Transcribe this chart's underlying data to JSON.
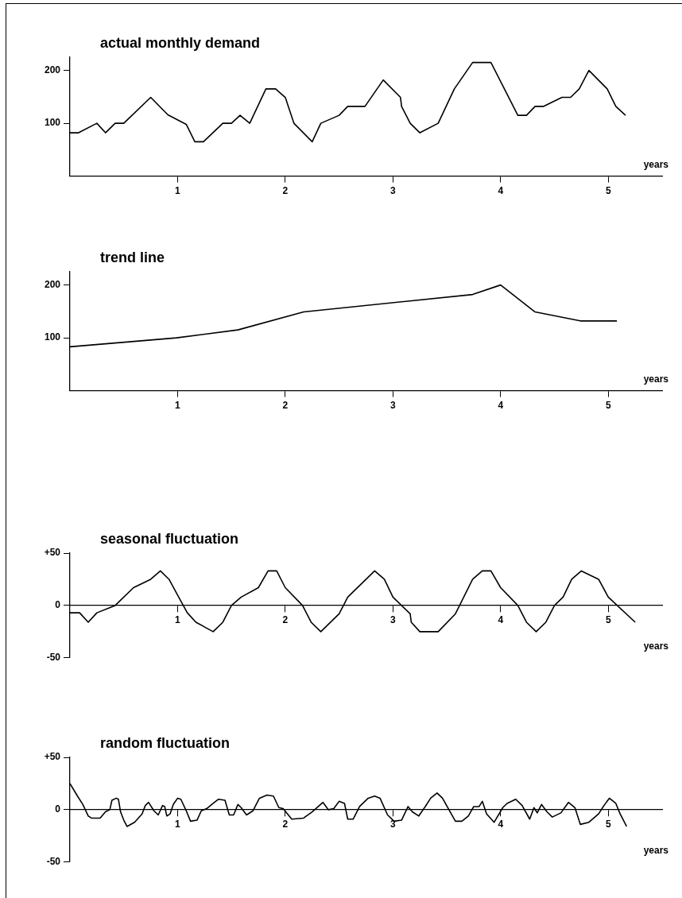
{
  "chart_data": [
    {
      "type": "line",
      "title": "actual monthly demand",
      "xlabel": "years",
      "color": "#000000",
      "xlim": [
        0,
        5.5
      ],
      "xticks": [
        1,
        2,
        3,
        4,
        5
      ],
      "ylim": [
        0,
        225
      ],
      "yticks": [
        100,
        200
      ],
      "x": [
        0,
        0.08,
        0.25,
        0.33,
        0.42,
        0.5,
        0.75,
        0.91,
        1.08,
        1.16,
        1.24,
        1.42,
        1.5,
        1.58,
        1.67,
        1.82,
        1.91,
        2,
        2.08,
        2.25,
        2.33,
        2.5,
        2.58,
        2.74,
        2.91,
        3.07,
        3.08,
        3.16,
        3.25,
        3.42,
        3.57,
        3.74,
        3.91,
        4.16,
        4.24,
        4.32,
        4.4,
        4.57,
        4.65,
        4.73,
        4.82,
        4.99,
        5.07,
        5.16
      ],
      "values": [
        82,
        82,
        100,
        82,
        100,
        100,
        149,
        116,
        98,
        65,
        65,
        100,
        100,
        115,
        100,
        165,
        165,
        149,
        100,
        65,
        100,
        115,
        132,
        132,
        182,
        149,
        132,
        100,
        82,
        100,
        165,
        215,
        215,
        115,
        115,
        132,
        132,
        149,
        149,
        165,
        200,
        165,
        132,
        115
      ]
    },
    {
      "type": "line",
      "title": "trend line",
      "xlabel": "years",
      "color": "#000000",
      "xlim": [
        0,
        5.5
      ],
      "xticks": [
        1,
        2,
        3,
        4,
        5
      ],
      "ylim": [
        0,
        225
      ],
      "yticks": [
        100,
        200
      ],
      "x": [
        0,
        0.99,
        1.56,
        2.17,
        3.74,
        4,
        4.32,
        4.74,
        5.08
      ],
      "values": [
        83,
        100,
        115,
        149,
        182,
        200,
        149,
        132,
        132
      ]
    },
    {
      "type": "line",
      "title": "seasonal fluctuation",
      "xlabel": "years",
      "color": "#000000",
      "xlim": [
        0,
        5.5
      ],
      "xticks": [
        1,
        2,
        3,
        4,
        5
      ],
      "ylim": [
        -50,
        50
      ],
      "yticks": [
        {
          "value": 50,
          "label": "+50"
        },
        0,
        -50
      ],
      "x": [
        0,
        0.09,
        0.17,
        0.25,
        0.42,
        0.59,
        0.75,
        0.84,
        0.92,
        1.01,
        1.09,
        1.17,
        1.33,
        1.42,
        1.5,
        1.59,
        1.75,
        1.84,
        1.92,
        2,
        2.16,
        2.24,
        2.33,
        2.5,
        2.58,
        2.83,
        2.92,
        3,
        3.16,
        3.17,
        3.25,
        3.42,
        3.58,
        3.74,
        3.83,
        3.91,
        4,
        4.16,
        4.24,
        4.33,
        4.42,
        4.5,
        4.58,
        4.66,
        4.75,
        4.91,
        5,
        5.25
      ],
      "values": [
        -7,
        -7,
        -16,
        -7,
        0,
        17,
        25,
        33,
        25,
        8,
        -7,
        -16,
        -25,
        -16,
        0,
        8,
        17,
        33,
        33,
        17,
        0,
        -16,
        -25,
        -8,
        8,
        33,
        25,
        8,
        -8,
        -16,
        -25,
        -25,
        -8,
        25,
        33,
        33,
        17,
        0,
        -16,
        -25,
        -16,
        0,
        8,
        25,
        33,
        25,
        8,
        -16
      ]
    },
    {
      "type": "line",
      "title": "random fluctuation",
      "xlabel": "years",
      "color": "#000000",
      "xlim": [
        0,
        5.5
      ],
      "xticks": [
        1,
        2,
        3,
        4,
        5
      ],
      "ylim": [
        -50,
        50
      ],
      "yticks": [
        {
          "value": 50,
          "label": "+50"
        },
        0,
        -50
      ],
      "x": [
        0,
        0.07,
        0.12,
        0.17,
        0.2,
        0.28,
        0.33,
        0.37,
        0.39,
        0.43,
        0.45,
        0.47,
        0.5,
        0.53,
        0.6,
        0.67,
        0.7,
        0.73,
        0.78,
        0.82,
        0.86,
        0.88,
        0.9,
        0.93,
        0.96,
        1,
        1.03,
        1.08,
        1.12,
        1.18,
        1.22,
        1.27,
        1.33,
        1.38,
        1.44,
        1.48,
        1.52,
        1.56,
        1.59,
        1.64,
        1.7,
        1.76,
        1.83,
        1.89,
        1.94,
        1.98,
        2.06,
        2.17,
        2.25,
        2.35,
        2.4,
        2.45,
        2.5,
        2.55,
        2.58,
        2.63,
        2.69,
        2.77,
        2.83,
        2.88,
        2.95,
        3.01,
        3.08,
        3.14,
        3.18,
        3.24,
        3.3,
        3.35,
        3.41,
        3.46,
        3.58,
        3.64,
        3.7,
        3.75,
        3.8,
        3.83,
        3.87,
        3.94,
        4.02,
        4.06,
        4.14,
        4.2,
        4.27,
        4.31,
        4.34,
        4.38,
        4.43,
        4.48,
        4.56,
        4.63,
        4.69,
        4.74,
        4.82,
        4.91,
        4.96,
        5.01,
        5.07,
        5.11,
        5.17
      ],
      "values": [
        25,
        13,
        5,
        -6,
        -8,
        -8,
        -2,
        0,
        9,
        11,
        10,
        -2,
        -10,
        -16,
        -12,
        -4,
        4,
        7,
        -1,
        -5,
        4,
        3,
        -6,
        -4,
        5,
        11,
        10,
        -1,
        -11,
        -10,
        -1,
        1,
        6,
        10,
        9,
        -5,
        -5,
        5,
        2,
        -5,
        -1,
        11,
        14,
        13,
        2,
        1,
        -9,
        -8,
        -2,
        7,
        0,
        1,
        8,
        6,
        -9,
        -9,
        3,
        11,
        13,
        11,
        -5,
        -11,
        -10,
        3,
        -2,
        -6,
        3,
        11,
        16,
        11,
        -11,
        -11,
        -6,
        3,
        3,
        8,
        -4,
        -12,
        2,
        6,
        10,
        4,
        -9,
        2,
        -3,
        5,
        -2,
        -7,
        -3,
        7,
        2,
        -14,
        -12,
        -4,
        4,
        11,
        6,
        -4,
        -16
      ]
    }
  ]
}
